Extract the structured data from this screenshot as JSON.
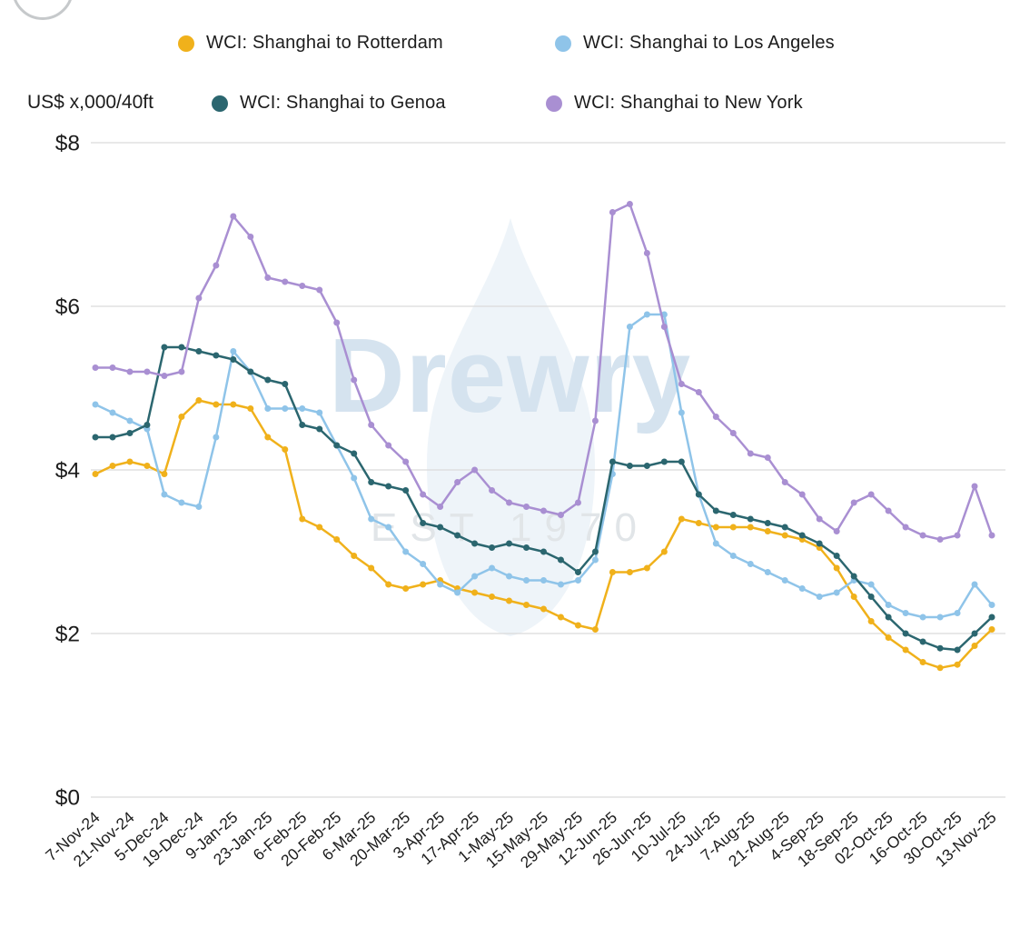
{
  "watermark": {
    "text": "Drewry",
    "subtext": "EST 1970"
  },
  "chart_data": {
    "type": "line",
    "title": "",
    "ylabel": "US$ x,000/40ft",
    "ylim": [
      0,
      8
    ],
    "y_ticks": [
      0,
      2,
      4,
      6,
      8
    ],
    "y_tick_prefix": "$",
    "grid": "horizontal",
    "legend_position": "top",
    "marker": "circle",
    "x_tick_every": 2,
    "x": [
      "7-Nov-24",
      "14-Nov-24",
      "21-Nov-24",
      "28-Nov-24",
      "5-Dec-24",
      "12-Dec-24",
      "19-Dec-24",
      "2-Jan-25",
      "9-Jan-25",
      "16-Jan-25",
      "23-Jan-25",
      "30-Jan-25",
      "6-Feb-25",
      "13-Feb-25",
      "20-Feb-25",
      "27-Feb-25",
      "6-Mar-25",
      "13-Mar-25",
      "20-Mar-25",
      "27-Mar-25",
      "3-Apr-25",
      "10-Apr-25",
      "17-Apr-25",
      "24-Apr-25",
      "1-May-25",
      "8-May-25",
      "15-May-25",
      "22-May-25",
      "29-May-25",
      "5-Jun-25",
      "12-Jun-25",
      "19-Jun-25",
      "26-Jun-25",
      "3-Jul-25",
      "10-Jul-25",
      "17-Jul-25",
      "24-Jul-25",
      "31-Jul-25",
      "7-Aug-25",
      "14-Aug-25",
      "21-Aug-25",
      "28-Aug-25",
      "4-Sep-25",
      "11-Sep-25",
      "18-Sep-25",
      "25-Sep-25",
      "02-Oct-25",
      "9-Oct-25",
      "16-Oct-25",
      "23-Oct-25",
      "30-Oct-25",
      "6-Nov-25",
      "13-Nov-25"
    ],
    "series": [
      {
        "name": "WCI: Shanghai to Rotterdam",
        "color": "#F0B11B",
        "values": [
          3.95,
          4.05,
          4.1,
          4.05,
          3.95,
          4.65,
          4.85,
          4.8,
          4.8,
          4.75,
          4.4,
          4.25,
          3.4,
          3.3,
          3.15,
          2.95,
          2.8,
          2.6,
          2.55,
          2.6,
          2.65,
          2.55,
          2.5,
          2.45,
          2.4,
          2.35,
          2.3,
          2.2,
          2.1,
          2.05,
          2.75,
          2.75,
          2.8,
          3.0,
          3.4,
          3.35,
          3.3,
          3.3,
          3.3,
          3.25,
          3.2,
          3.15,
          3.05,
          2.8,
          2.45,
          2.15,
          1.95,
          1.8,
          1.65,
          1.58,
          1.62,
          1.85,
          2.05
        ]
      },
      {
        "name": "WCI: Shanghai to Los Angeles",
        "color": "#8FC4E9",
        "values": [
          4.8,
          4.7,
          4.6,
          4.5,
          3.7,
          3.6,
          3.55,
          4.4,
          5.45,
          5.2,
          4.75,
          4.75,
          4.75,
          4.7,
          4.3,
          3.9,
          3.4,
          3.3,
          3.0,
          2.85,
          2.6,
          2.5,
          2.7,
          2.8,
          2.7,
          2.65,
          2.65,
          2.6,
          2.65,
          2.9,
          3.95,
          5.75,
          5.9,
          5.9,
          4.7,
          3.7,
          3.1,
          2.95,
          2.85,
          2.75,
          2.65,
          2.55,
          2.45,
          2.5,
          2.65,
          2.6,
          2.35,
          2.25,
          2.2,
          2.2,
          2.25,
          2.6,
          2.35
        ]
      },
      {
        "name": "WCI: Shanghai to Genoa",
        "color": "#2B666F",
        "values": [
          4.4,
          4.4,
          4.45,
          4.55,
          5.5,
          5.5,
          5.45,
          5.4,
          5.35,
          5.2,
          5.1,
          5.05,
          4.55,
          4.5,
          4.3,
          4.2,
          3.85,
          3.8,
          3.75,
          3.35,
          3.3,
          3.2,
          3.1,
          3.05,
          3.1,
          3.05,
          3.0,
          2.9,
          2.75,
          3.0,
          4.1,
          4.05,
          4.05,
          4.1,
          4.1,
          3.7,
          3.5,
          3.45,
          3.4,
          3.35,
          3.3,
          3.2,
          3.1,
          2.95,
          2.7,
          2.45,
          2.2,
          2.0,
          1.9,
          1.82,
          1.8,
          2.0,
          2.2
        ]
      },
      {
        "name": "WCI: Shanghai to New York",
        "color": "#A98FD2",
        "values": [
          5.25,
          5.25,
          5.2,
          5.2,
          5.15,
          5.2,
          6.1,
          6.5,
          7.1,
          6.85,
          6.35,
          6.3,
          6.25,
          6.2,
          5.8,
          5.1,
          4.55,
          4.3,
          4.1,
          3.7,
          3.55,
          3.85,
          4.0,
          3.75,
          3.6,
          3.55,
          3.5,
          3.45,
          3.6,
          4.6,
          7.15,
          7.25,
          6.65,
          5.75,
          5.05,
          4.95,
          4.65,
          4.45,
          4.2,
          4.15,
          3.85,
          3.7,
          3.4,
          3.25,
          3.6,
          3.7,
          3.5,
          3.3,
          3.2,
          3.15,
          3.2,
          3.8,
          3.2
        ]
      }
    ]
  }
}
